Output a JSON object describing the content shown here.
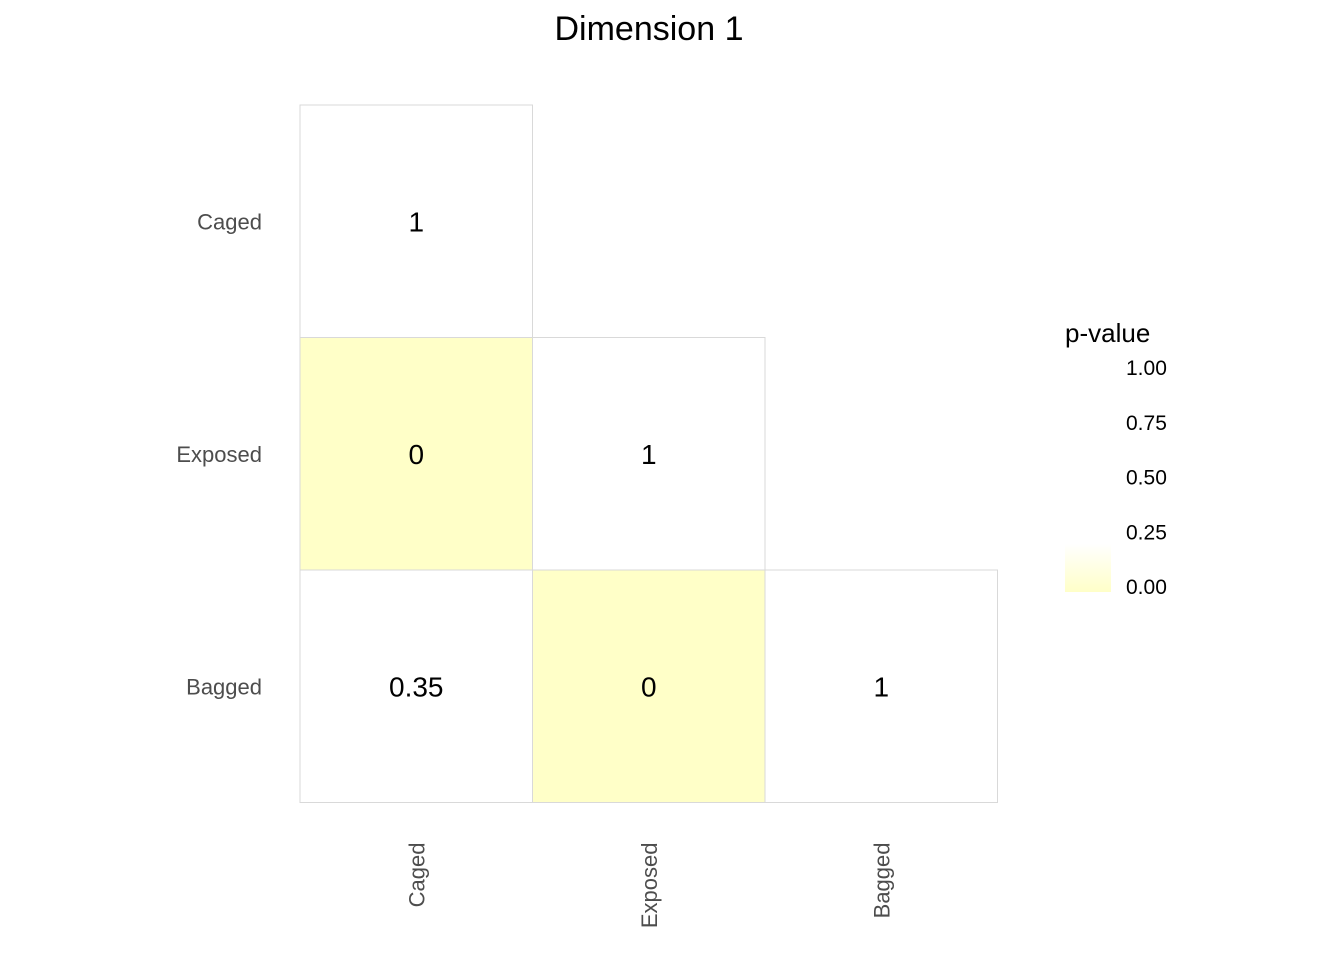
{
  "chart_data": {
    "type": "heatmap",
    "title": "Dimension 1",
    "xlabel": "",
    "ylabel": "",
    "x_categories": [
      "Caged",
      "Exposed",
      "Bagged"
    ],
    "y_categories": [
      "Caged",
      "Exposed",
      "Bagged"
    ],
    "cells": [
      {
        "x": "Caged",
        "y": "Caged",
        "value": 1,
        "label": "1"
      },
      {
        "x": "Caged",
        "y": "Exposed",
        "value": 0,
        "label": "0"
      },
      {
        "x": "Exposed",
        "y": "Exposed",
        "value": 1,
        "label": "1"
      },
      {
        "x": "Caged",
        "y": "Bagged",
        "value": 0.35,
        "label": "0.35"
      },
      {
        "x": "Exposed",
        "y": "Bagged",
        "value": 0,
        "label": "0"
      },
      {
        "x": "Bagged",
        "y": "Bagged",
        "value": 1,
        "label": "1"
      }
    ],
    "legend": {
      "title": "p-value",
      "ticks": [
        "1.00",
        "0.75",
        "0.50",
        "0.25",
        "0.00"
      ],
      "range": [
        0,
        1
      ],
      "placement": "right"
    },
    "colors": {
      "low": "#ffffc8",
      "high": "#ffffff",
      "border": "#d9d9d9"
    },
    "grid": false
  }
}
